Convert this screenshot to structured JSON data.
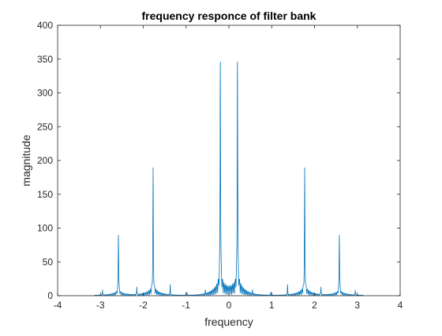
{
  "chart_data": {
    "type": "line",
    "title": "frequency responce of filter bank",
    "xlabel": "frequency",
    "ylabel": "magnitude",
    "xlim": [
      -4,
      4
    ],
    "ylim": [
      0,
      400
    ],
    "xticks": [
      "-4",
      "-3",
      "-2",
      "-1",
      "0",
      "1",
      "2",
      "3",
      "4"
    ],
    "yticks": [
      "0",
      "50",
      "100",
      "150",
      "200",
      "250",
      "300",
      "350",
      "400"
    ],
    "grid": false,
    "line_color": "#0072BD",
    "x_range_of_data": [
      -3.1416,
      3.1416
    ],
    "peaks": [
      {
        "x": -2.58,
        "y": 90
      },
      {
        "x": -1.77,
        "y": 178
      },
      {
        "x": -0.2,
        "y": 355
      },
      {
        "x": 0.2,
        "y": 355
      },
      {
        "x": 1.77,
        "y": 178
      },
      {
        "x": 2.58,
        "y": 90
      }
    ],
    "minor_peaks": [
      {
        "x": -2.95,
        "y": 8
      },
      {
        "x": -2.15,
        "y": 13
      },
      {
        "x": -1.37,
        "y": 17
      },
      {
        "x": -0.98,
        "y": 5
      },
      {
        "x": -0.55,
        "y": 6
      },
      {
        "x": 0.55,
        "y": 6
      },
      {
        "x": 0.98,
        "y": 5
      },
      {
        "x": 1.37,
        "y": 17
      },
      {
        "x": 2.15,
        "y": 13
      },
      {
        "x": 2.95,
        "y": 8
      }
    ]
  }
}
